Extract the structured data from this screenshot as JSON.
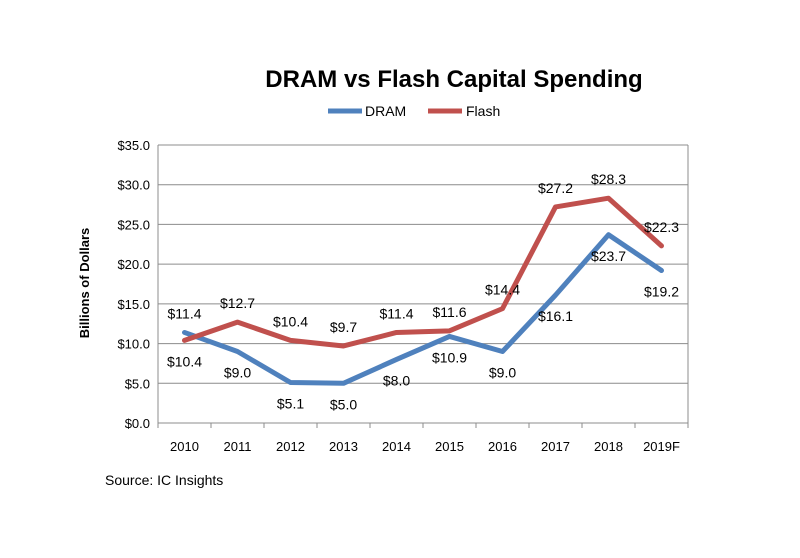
{
  "chart_data": {
    "type": "line",
    "title": "DRAM vs Flash Capital Spending",
    "ylabel": "Billions of Dollars",
    "xlabel": "",
    "categories": [
      "2010",
      "2011",
      "2012",
      "2013",
      "2014",
      "2015",
      "2016",
      "2017",
      "2018",
      "2019F"
    ],
    "ylim": [
      0,
      35
    ],
    "yticks": [
      0,
      5,
      10,
      15,
      20,
      25,
      30,
      35
    ],
    "ytick_labels": [
      "$0.0",
      "$5.0",
      "$10.0",
      "$15.0",
      "$20.0",
      "$25.0",
      "$30.0",
      "$35.0"
    ],
    "grid": true,
    "legend_position": "top",
    "series": [
      {
        "name": "DRAM",
        "color": "#4f81bd",
        "values": [
          11.4,
          9.0,
          5.1,
          5.0,
          8.0,
          10.9,
          9.0,
          16.1,
          23.7,
          19.2
        ],
        "labels": [
          "$11.4",
          "$9.0",
          "$5.1",
          "$5.0",
          "$8.0",
          "$10.9",
          "$9.0",
          "$16.1",
          "$23.7",
          "$19.2"
        ]
      },
      {
        "name": "Flash",
        "color": "#c0504d",
        "values": [
          10.4,
          12.7,
          10.4,
          9.7,
          11.4,
          11.6,
          14.4,
          27.2,
          28.3,
          22.3
        ],
        "labels": [
          "$10.4",
          "$12.7",
          "$10.4",
          "$9.7",
          "$11.4",
          "$11.6",
          "$14.4",
          "$27.2",
          "$28.3",
          "$22.3"
        ]
      }
    ],
    "source": "Source:  IC Insights"
  }
}
